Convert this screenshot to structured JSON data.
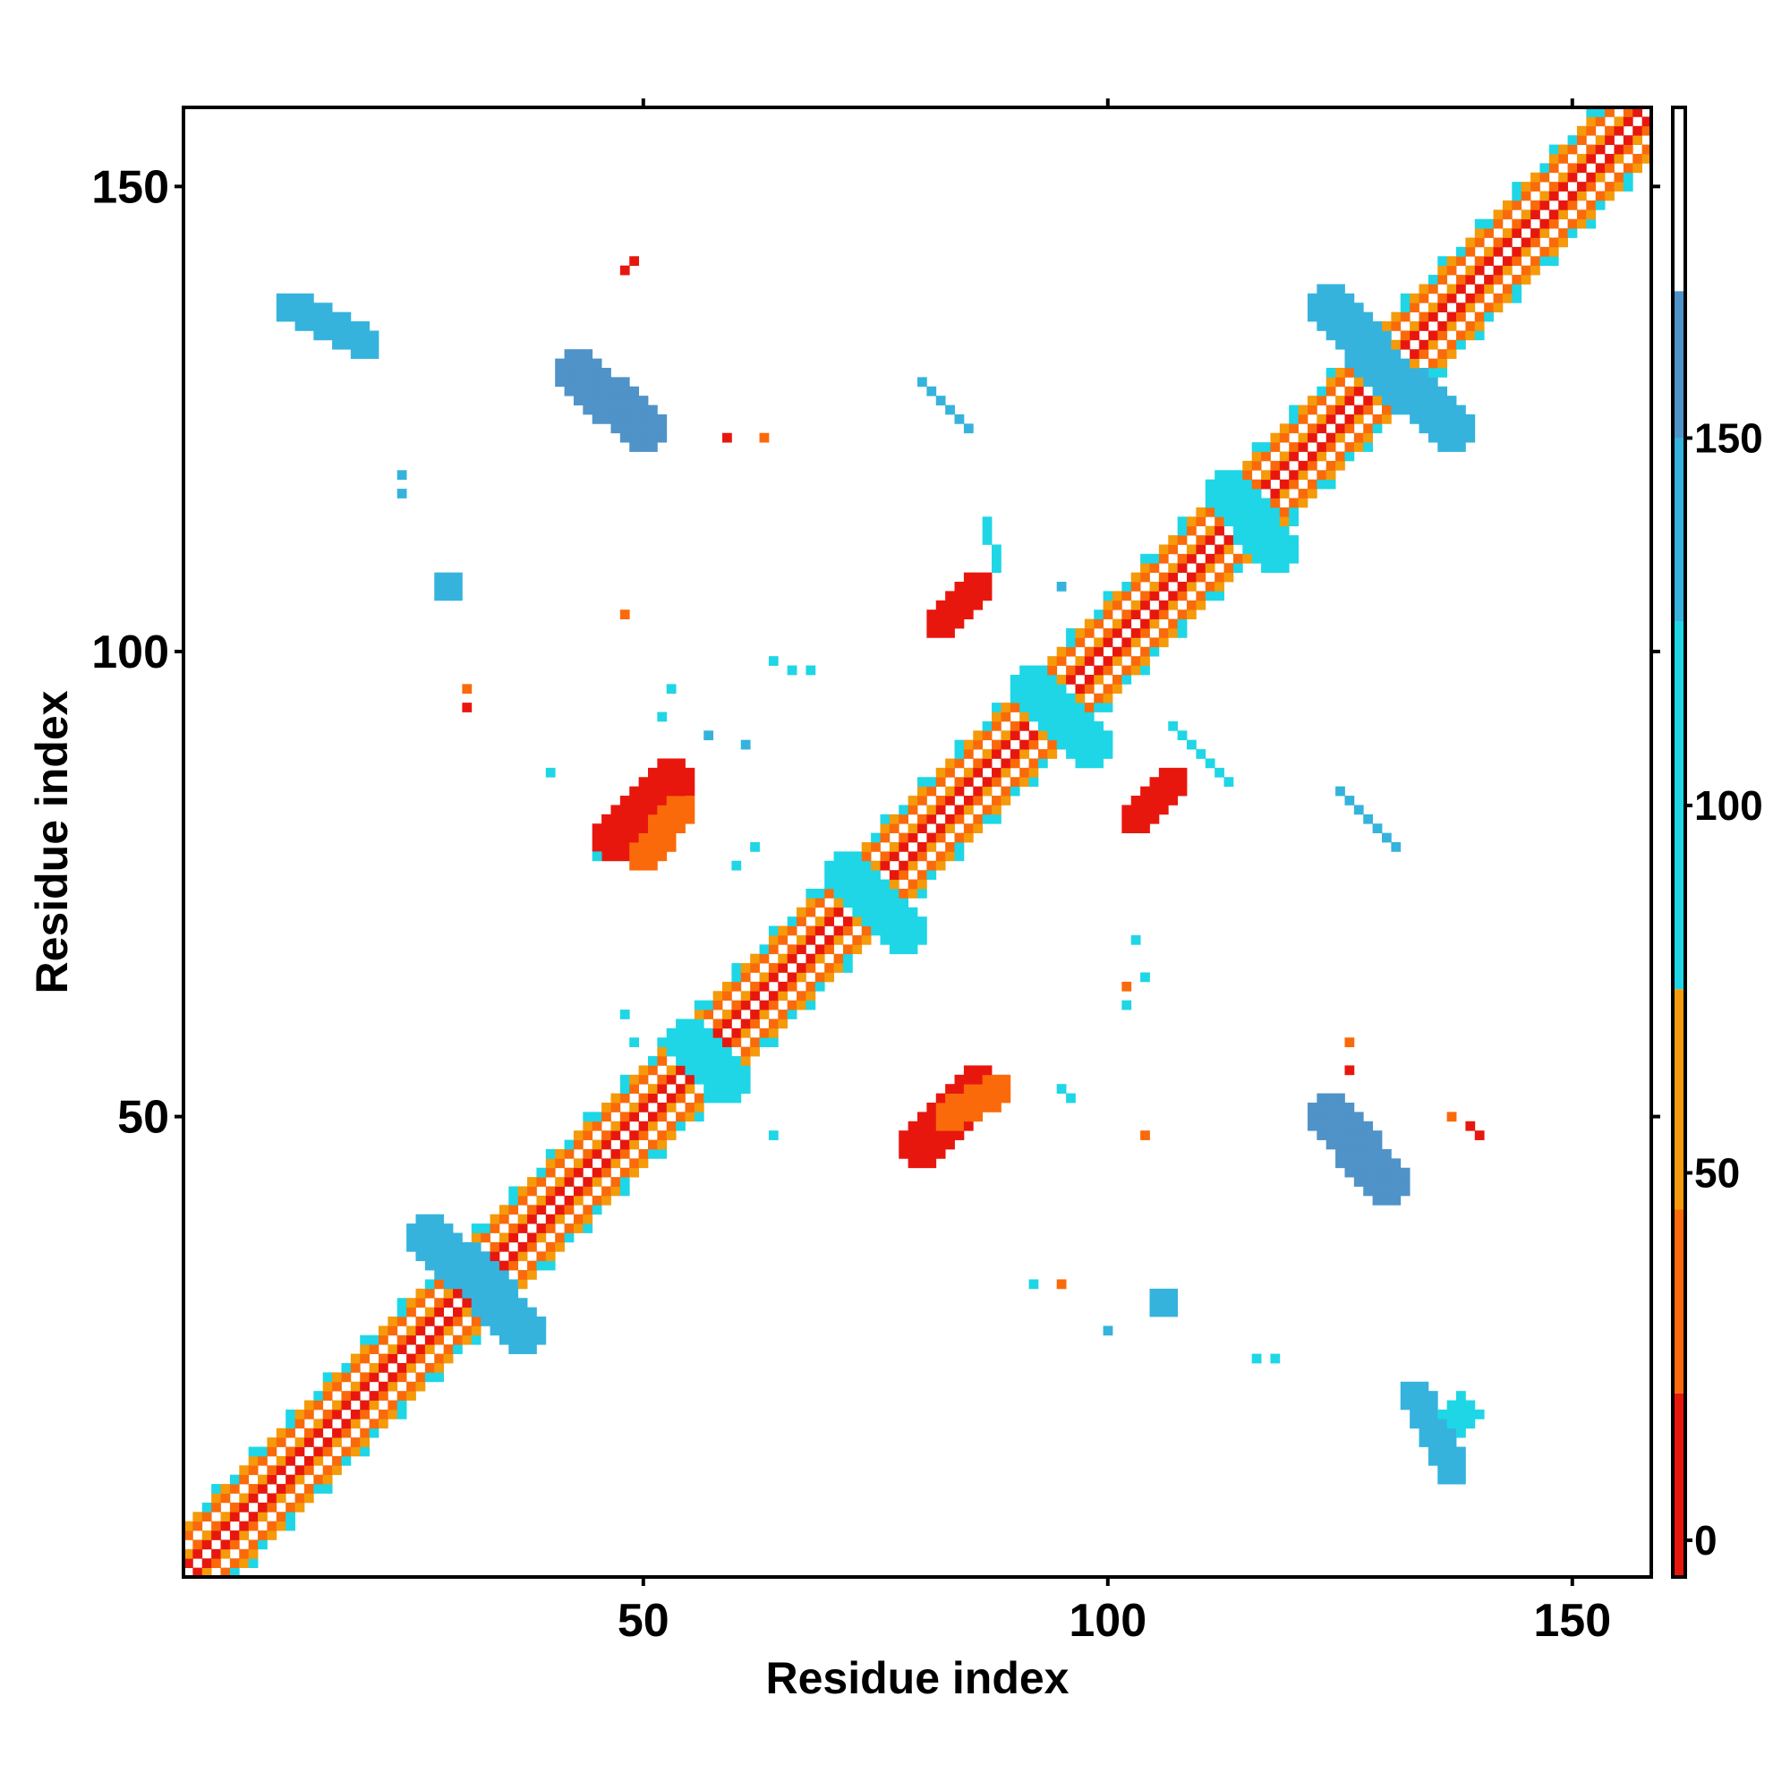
{
  "chart_data": {
    "type": "heatmap",
    "title": "",
    "xlabel": "Residue index",
    "ylabel": "Residue index",
    "xlim": [
      1,
      158
    ],
    "ylim": [
      1,
      158
    ],
    "x_ticks": [
      50,
      100,
      150
    ],
    "y_ticks": [
      50,
      100,
      150
    ],
    "grid": false,
    "legend": "right colorbar",
    "colorbar": {
      "range": [
        -5,
        195
      ],
      "ticks": [
        0,
        50,
        100,
        150
      ],
      "stops": [
        {
          "from": -5,
          "to": 20,
          "color": "#e8170e"
        },
        {
          "from": 20,
          "to": 45,
          "color": "#fa6a0a"
        },
        {
          "from": 45,
          "to": 75,
          "color": "#f59a0a"
        },
        {
          "from": 75,
          "to": 125,
          "color": "#1ed6e6"
        },
        {
          "from": 125,
          "to": 150,
          "color": "#35b3dd"
        },
        {
          "from": 150,
          "to": 170,
          "color": "#4f93c8"
        },
        {
          "from": 170,
          "to": 195,
          "color": "#ffffff"
        }
      ]
    },
    "background": "#ffffff",
    "diagonal": {
      "from": 1,
      "to": 158
    },
    "regions": [
      {
        "kind": "band",
        "x1": 31,
        "y1": 34,
        "x2": 37,
        "y2": 27,
        "half_width": 2,
        "value": 140
      },
      {
        "kind": "band",
        "x1": 34,
        "y1": 31,
        "x2": 27,
        "y2": 37,
        "half_width": 2,
        "value": 140
      },
      {
        "kind": "band",
        "x1": 55,
        "y1": 58,
        "x2": 59,
        "y2": 54,
        "half_width": 2,
        "value": 110
      },
      {
        "kind": "band",
        "x1": 72,
        "y1": 76,
        "x2": 78,
        "y2": 70,
        "half_width": 2,
        "value": 110
      },
      {
        "kind": "band",
        "x1": 92,
        "y1": 96,
        "x2": 98,
        "y2": 90,
        "half_width": 2,
        "value": 115
      },
      {
        "kind": "band",
        "x1": 113,
        "y1": 117,
        "x2": 118,
        "y2": 111,
        "half_width": 2,
        "value": 120
      },
      {
        "kind": "band",
        "x1": 128,
        "y1": 132,
        "x2": 137,
        "y2": 124,
        "half_width": 2,
        "value": 140
      },
      {
        "kind": "band",
        "x1": 132,
        "y1": 128,
        "x2": 124,
        "y2": 137,
        "half_width": 2,
        "value": 140
      },
      {
        "kind": "band",
        "x1": 47,
        "y1": 80,
        "x2": 53,
        "y2": 86,
        "half_width": 2,
        "value": 10
      },
      {
        "kind": "band",
        "x1": 50,
        "y1": 78,
        "x2": 54,
        "y2": 83,
        "half_width": 1,
        "value": 35
      },
      {
        "kind": "band",
        "x1": 80,
        "y1": 47,
        "x2": 86,
        "y2": 53,
        "half_width": 2,
        "value": 10
      },
      {
        "kind": "band",
        "x1": 83,
        "y1": 50,
        "x2": 88,
        "y2": 53,
        "half_width": 1,
        "value": 35
      },
      {
        "kind": "band",
        "x1": 82,
        "y1": 103,
        "x2": 86,
        "y2": 107,
        "half_width": 1,
        "value": 10
      },
      {
        "kind": "band",
        "x1": 103,
        "y1": 82,
        "x2": 107,
        "y2": 86,
        "half_width": 1,
        "value": 10
      },
      {
        "kind": "band",
        "x1": 43,
        "y1": 130,
        "x2": 50,
        "y2": 124,
        "half_width": 2,
        "value": 155
      },
      {
        "kind": "band",
        "x1": 130,
        "y1": 43,
        "x2": 124,
        "y2": 50,
        "half_width": 2,
        "value": 155
      },
      {
        "kind": "band",
        "x1": 12,
        "y1": 137,
        "x2": 20,
        "y2": 133,
        "half_width": 1,
        "value": 130
      },
      {
        "kind": "band",
        "x1": 137,
        "y1": 12,
        "x2": 133,
        "y2": 20,
        "half_width": 1,
        "value": 130
      },
      {
        "kind": "band",
        "x1": 80,
        "y1": 129,
        "x2": 85,
        "y2": 124,
        "half_width": 0,
        "value": 130
      },
      {
        "kind": "band",
        "x1": 125,
        "y1": 85,
        "x2": 131,
        "y2": 79,
        "half_width": 0,
        "value": 130
      },
      {
        "kind": "band",
        "x1": 87,
        "y1": 114,
        "x2": 88,
        "y2": 109,
        "half_width": 0,
        "value": 100
      },
      {
        "kind": "band",
        "x1": 107,
        "y1": 92,
        "x2": 113,
        "y2": 86,
        "half_width": 0,
        "value": 100
      },
      {
        "kind": "blob",
        "cx": 29,
        "cy": 107,
        "r": 1.5,
        "value": 140
      },
      {
        "kind": "blob",
        "cx": 106,
        "cy": 30,
        "r": 1.5,
        "value": 140
      },
      {
        "kind": "blob",
        "cx": 138,
        "cy": 18,
        "r": 2,
        "value": 110
      },
      {
        "kind": "cells",
        "value": 130,
        "points": [
          [
            24,
            119
          ],
          [
            24,
            117
          ],
          [
            95,
            107
          ],
          [
            100,
            27
          ],
          [
            61,
            90
          ],
          [
            57,
            91
          ]
        ]
      },
      {
        "kind": "cells",
        "value": 100,
        "points": [
          [
            31,
            94
          ],
          [
            53,
            96
          ],
          [
            52,
            93
          ],
          [
            40,
            87
          ],
          [
            45,
            78
          ],
          [
            64,
            99
          ],
          [
            66,
            98
          ],
          [
            68,
            98
          ],
          [
            60,
            77
          ],
          [
            62,
            79
          ],
          [
            48,
            61
          ],
          [
            49,
            58
          ],
          [
            103,
            69
          ],
          [
            104,
            65
          ],
          [
            102,
            62
          ],
          [
            95,
            53
          ],
          [
            96,
            52
          ],
          [
            92,
            32
          ],
          [
            118,
            24
          ],
          [
            116,
            24
          ],
          [
            126,
            55
          ],
          [
            64,
            48
          ]
        ]
      },
      {
        "kind": "cells",
        "value": 40,
        "points": [
          [
            31,
            96
          ],
          [
            48,
            104
          ],
          [
            63,
            123
          ],
          [
            102,
            64
          ],
          [
            104,
            48
          ],
          [
            95,
            32
          ],
          [
            126,
            58
          ],
          [
            137,
            50
          ]
        ]
      },
      {
        "kind": "cells",
        "value": 0,
        "points": [
          [
            49,
            142
          ],
          [
            48,
            141
          ],
          [
            31,
            94
          ],
          [
            59,
            123
          ],
          [
            139,
            49
          ],
          [
            140,
            48
          ],
          [
            126,
            55
          ]
        ]
      }
    ]
  }
}
